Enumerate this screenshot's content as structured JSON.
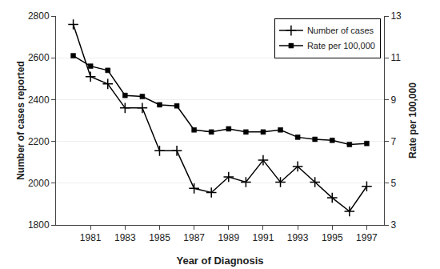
{
  "chart_data": {
    "type": "line",
    "xlabel": "Year of Diagnosis",
    "ylabel": "Number of cases reported",
    "y2label": "Rate per 100,000",
    "x": [
      1980,
      1981,
      1982,
      1983,
      1984,
      1985,
      1986,
      1987,
      1988,
      1989,
      1990,
      1991,
      1992,
      1993,
      1994,
      1995,
      1996,
      1997
    ],
    "series": [
      {
        "name": "Number of cases",
        "color": "black",
        "marker": "plus",
        "axis": "y",
        "values": [
          2760,
          2510,
          2475,
          2360,
          2360,
          2155,
          2155,
          1975,
          1955,
          2030,
          2005,
          2110,
          2005,
          2080,
          2005,
          1930,
          1865,
          1985
        ]
      },
      {
        "name": "Rate per 100,000",
        "color": "black",
        "marker": "square",
        "axis": "y2",
        "values": [
          11.1,
          10.6,
          10.4,
          9.2,
          9.15,
          8.75,
          8.7,
          7.55,
          7.45,
          7.6,
          7.45,
          7.45,
          7.55,
          7.2,
          7.1,
          7.05,
          6.85,
          6.9
        ]
      }
    ],
    "xlim": [
      1979,
      1998
    ],
    "xticks": [
      1981,
      1983,
      1985,
      1987,
      1989,
      1991,
      1993,
      1995,
      1997
    ],
    "ylim": [
      1800,
      2800
    ],
    "yticks": [
      1800,
      2000,
      2200,
      2400,
      2600,
      2800
    ],
    "y2lim": [
      3,
      13
    ],
    "y2ticks": [
      3,
      5,
      7,
      9,
      11,
      13
    ],
    "grid": "y",
    "legend": "upper right"
  }
}
